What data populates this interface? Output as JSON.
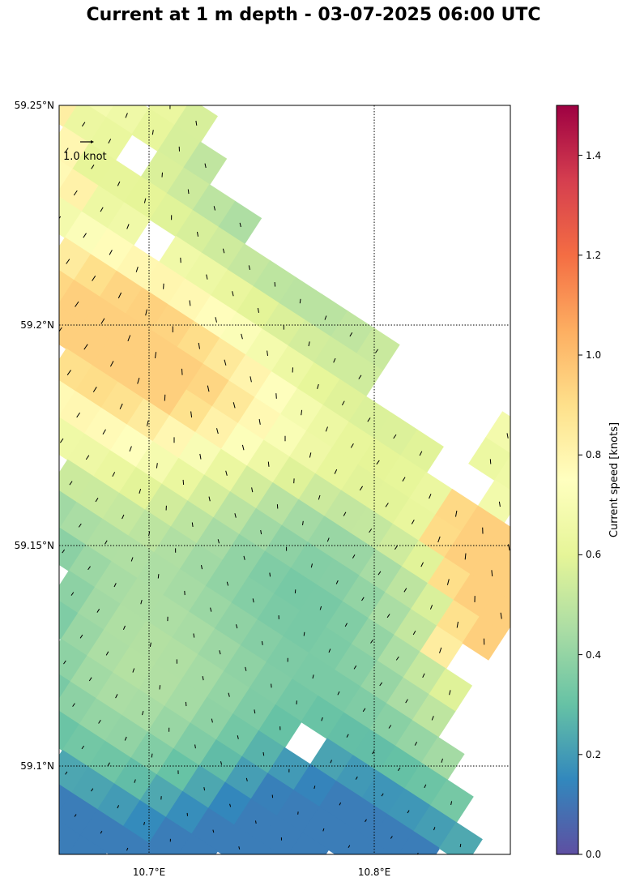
{
  "title": "Current at 1 m depth - 03-07-2025 06:00 UTC",
  "map": {
    "lat_range": [
      59.08,
      59.25
    ],
    "lon_range": [
      10.66,
      10.86
    ],
    "lat_ticks": [
      "59.25°N",
      "59.2°N",
      "59.15°N",
      "59.1°N"
    ],
    "lon_ticks": [
      "10.7°E",
      "10.8°E"
    ],
    "quiver_key_label": "1.0 knot",
    "gridlines": "dotted"
  },
  "colorbar": {
    "label": "Current speed [knots]",
    "ticks": [
      "0.0",
      "0.2",
      "0.4",
      "0.6",
      "0.8",
      "1.0",
      "1.2",
      "1.4"
    ],
    "range": [
      0.0,
      1.5
    ],
    "colormap": "Spectral_r",
    "colors": [
      "#5e4fa2",
      "#3288bd",
      "#66c2a5",
      "#abdda4",
      "#e6f598",
      "#ffffbf",
      "#fee08b",
      "#fdae61",
      "#f46d43",
      "#d53e4f",
      "#9e0142"
    ]
  }
}
